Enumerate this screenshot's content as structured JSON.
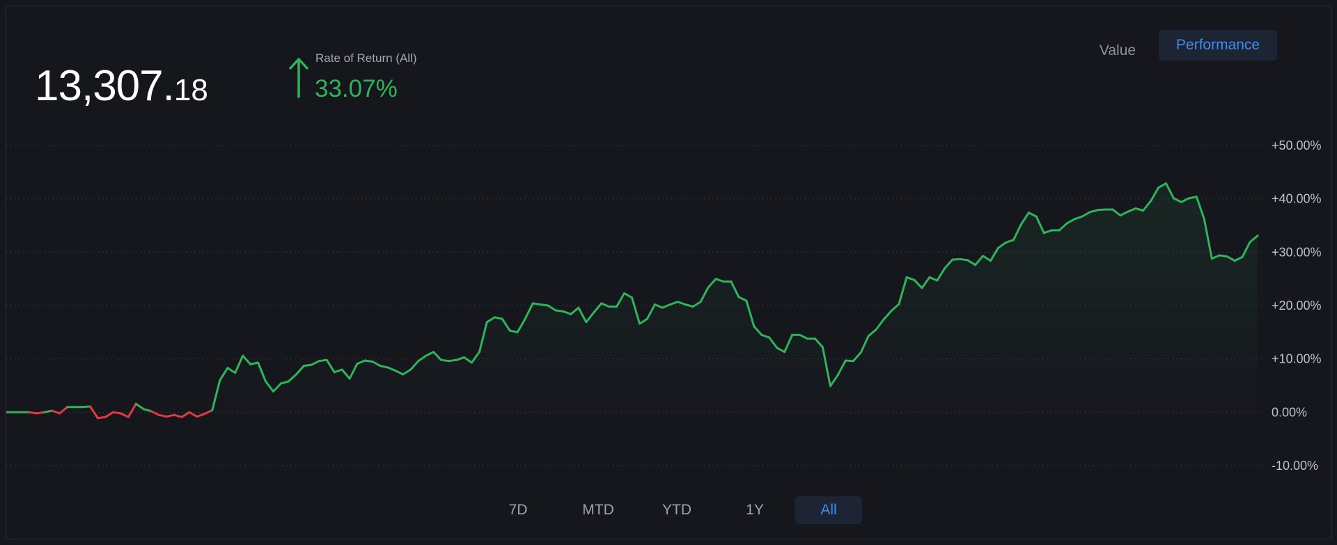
{
  "header": {
    "balance_int": "13,307.",
    "balance_dec": "18",
    "ror_label": "Rate of Return (All)",
    "ror_value": "33.07%"
  },
  "toggle": {
    "value_label": "Value",
    "performance_label": "Performance",
    "active": "Performance"
  },
  "periods": [
    {
      "label": "7D",
      "active": false
    },
    {
      "label": "MTD",
      "active": false
    },
    {
      "label": "YTD",
      "active": false
    },
    {
      "label": "1Y",
      "active": false
    },
    {
      "label": "All",
      "active": true
    }
  ],
  "colors": {
    "positive": "#2fb45c",
    "negative": "#e23a45",
    "accent": "#3f8ef0",
    "background": "#16171d"
  },
  "icons": {
    "trend": "arrow-up-icon"
  },
  "chart_data": {
    "type": "line",
    "ylabel": "",
    "xlabel": "",
    "ylim": [
      -10,
      50
    ],
    "yticks": [
      {
        "value": 50,
        "label": "+50.00%"
      },
      {
        "value": 40,
        "label": "+40.00%"
      },
      {
        "value": 30,
        "label": "+30.00%"
      },
      {
        "value": 20,
        "label": "+20.00%"
      },
      {
        "value": 10,
        "label": "+10.00%"
      },
      {
        "value": 0,
        "label": "0.00%"
      },
      {
        "value": -10,
        "label": "-10.00%"
      }
    ],
    "grid": true,
    "series": [
      {
        "values": [
          0,
          0,
          0,
          0,
          -0.2,
          0,
          0.3,
          -0.2,
          1,
          1,
          1,
          1.1,
          -1.1,
          -0.9,
          0,
          -0.2,
          -0.9,
          1.6,
          0.6,
          0.2,
          -0.5,
          -0.8,
          -0.5,
          -0.9,
          0,
          -0.8,
          -0.3,
          0.4,
          6,
          8.3,
          7.4,
          10.6,
          9,
          9.3,
          5.8,
          3.9,
          5.4,
          5.8,
          7.1,
          8.7,
          8.9,
          9.6,
          9.8,
          7.5,
          8,
          6.3,
          9.1,
          9.7,
          9.5,
          8.7,
          8.4,
          7.8,
          7.1,
          8,
          9.6,
          10.6,
          11.3,
          9.8,
          9.6,
          9.8,
          10.3,
          9.3,
          11.3,
          16.9,
          17.8,
          17.5,
          15.3,
          15,
          17.5,
          20.4,
          20.2,
          20,
          19.1,
          18.9,
          18.4,
          19.6,
          16.9,
          18.7,
          20.4,
          19.8,
          19.8,
          22.3,
          21.5,
          16.6,
          17.5,
          20.2,
          19.6,
          20.2,
          20.7,
          20.2,
          19.8,
          20.7,
          23.4,
          25,
          24.5,
          24.5,
          21.6,
          20.9,
          16.1,
          14.5,
          14,
          12.1,
          11.3,
          14.5,
          14.5,
          13.8,
          13.8,
          12.2,
          4.9,
          7,
          9.7,
          9.6,
          11.2,
          14.3,
          15.5,
          17.4,
          19,
          20.3,
          25.3,
          24.8,
          23.3,
          25.3,
          24.7,
          27,
          28.6,
          28.7,
          28.5,
          27.6,
          29.3,
          28.4,
          30.8,
          31.8,
          32.3,
          35.2,
          37.4,
          36.7,
          33.6,
          34.1,
          34.1,
          35.4,
          36.2,
          36.7,
          37.5,
          37.9,
          38,
          38,
          36.9,
          37.6,
          38.2,
          37.8,
          39.6,
          42.1,
          42.9,
          40.1,
          39.4,
          40.1,
          40.4,
          36.2,
          28.8,
          29.4,
          29.2,
          28.4,
          29.1,
          31.9,
          33.1
        ],
        "color": "#2fb45c",
        "negative_color": "#e23a45"
      }
    ]
  }
}
